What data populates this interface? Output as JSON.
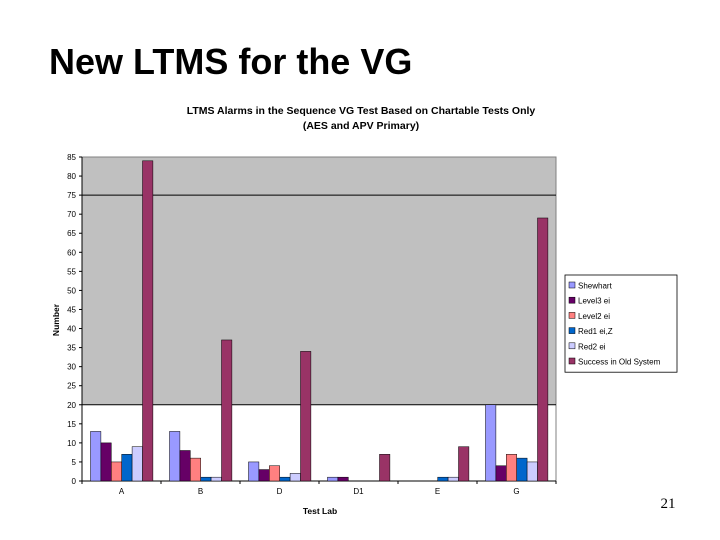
{
  "slide": {
    "title": "New LTMS for the VG",
    "page_number": "21"
  },
  "chart_data": {
    "type": "bar",
    "title": "LTMS Alarms in the Sequence VG Test Based on Chartable Tests Only",
    "subtitle": "(AES and APV Primary)",
    "xlabel": "Test Lab",
    "ylabel": "Number",
    "ylim": [
      0,
      85
    ],
    "yticks": [
      0,
      5,
      10,
      15,
      20,
      25,
      30,
      35,
      40,
      45,
      50,
      55,
      60,
      65,
      70,
      75,
      80,
      85
    ],
    "reference_lines": [
      20,
      75
    ],
    "plot_background": "#c0c0c0",
    "grid": false,
    "legend_position": "right",
    "categories": [
      "A",
      "B",
      "D",
      "D1",
      "E",
      "G"
    ],
    "series": [
      {
        "name": "Shewhart",
        "color": "#9999ff",
        "values": [
          13,
          13,
          5,
          1,
          0,
          20
        ]
      },
      {
        "name": "Level3 ei",
        "color": "#660066",
        "values": [
          10,
          8,
          3,
          1,
          0,
          4
        ]
      },
      {
        "name": "Level2 ei",
        "color": "#ff8080",
        "values": [
          5,
          6,
          4,
          0,
          0,
          7
        ]
      },
      {
        "name": "Red1 ei,Z",
        "color": "#0066cc",
        "values": [
          7,
          1,
          1,
          0,
          1,
          6
        ]
      },
      {
        "name": "Red2 ei",
        "color": "#ccccff",
        "values": [
          9,
          1,
          2,
          0,
          1,
          5
        ]
      },
      {
        "name": "Success in Old System",
        "color": "#993366",
        "values": [
          84,
          37,
          34,
          7,
          9,
          69
        ]
      }
    ]
  }
}
